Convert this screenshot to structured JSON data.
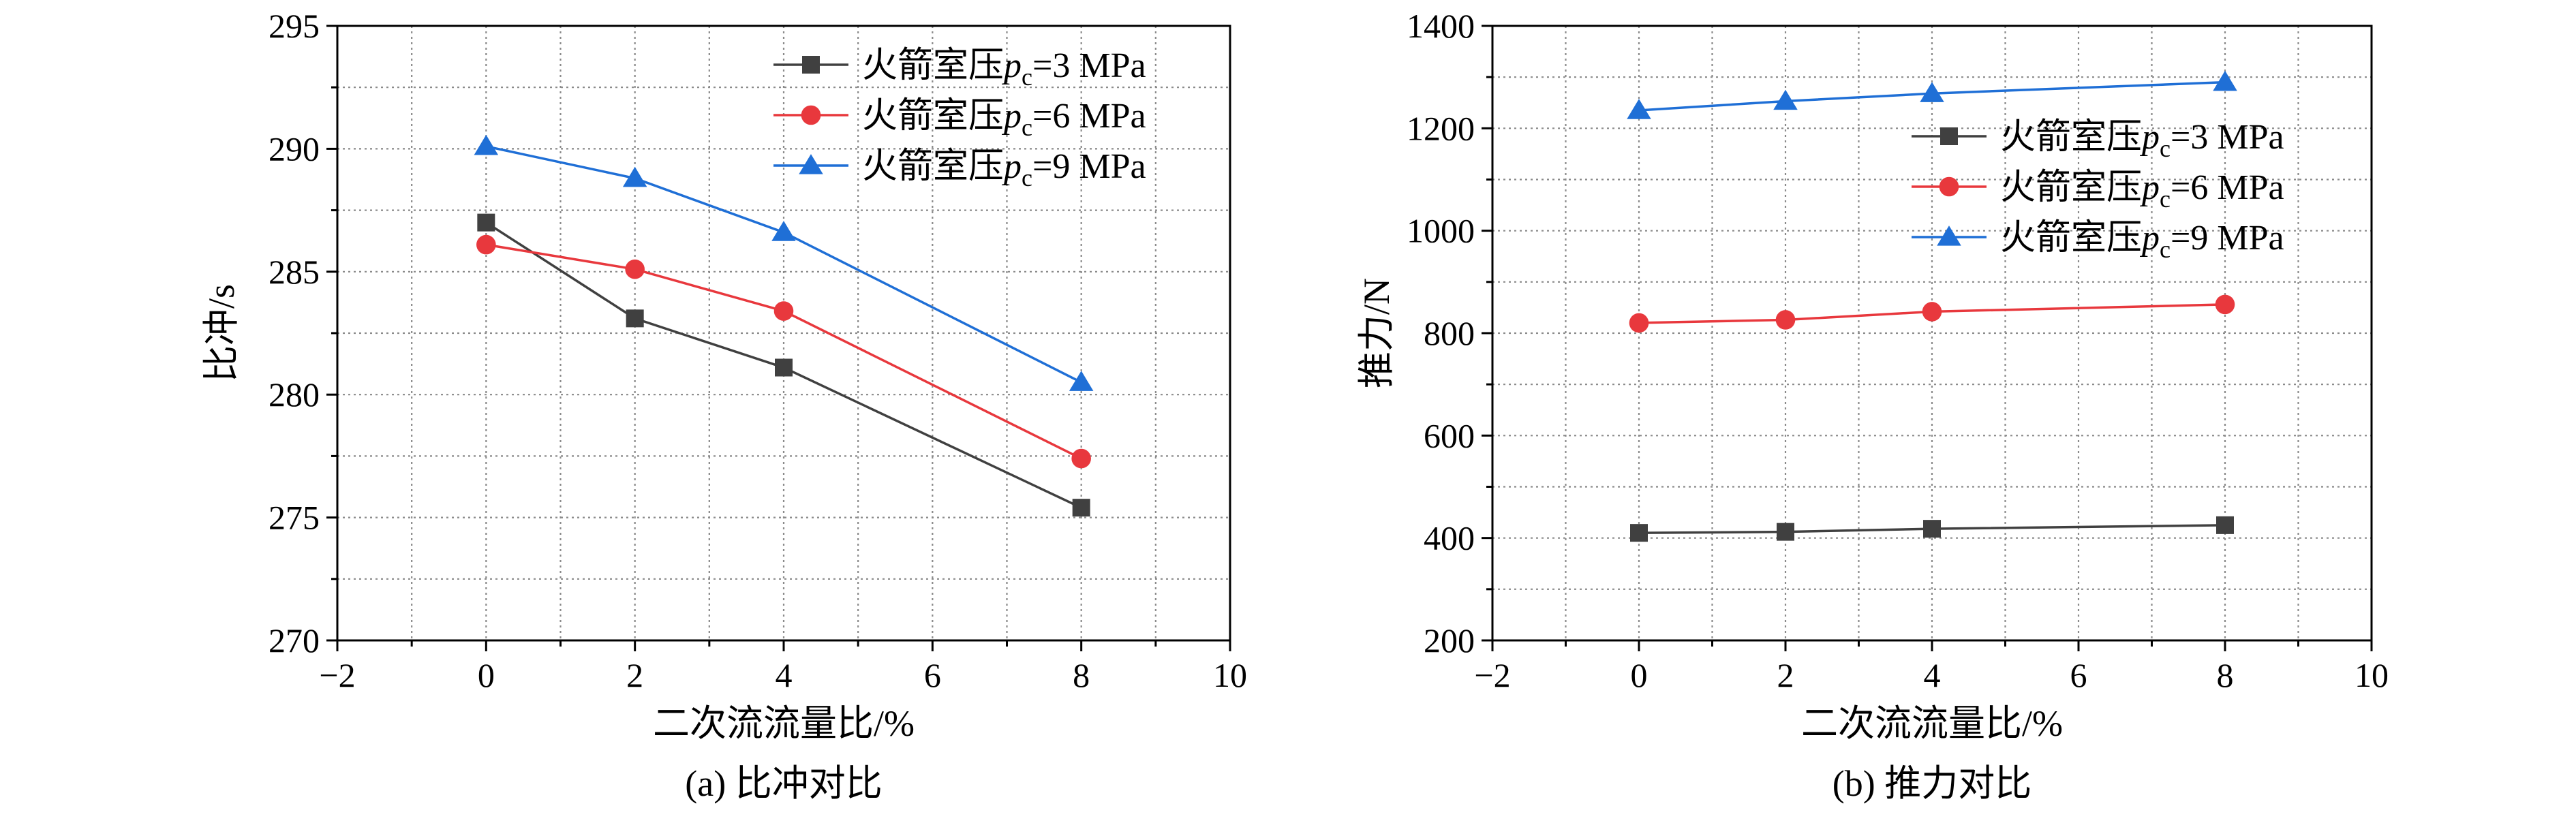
{
  "chart_data": [
    {
      "type": "line",
      "caption": "(a) 比冲对比",
      "xlabel": "二次流流量比/%",
      "ylabel": "比冲/s",
      "xlim": [
        -2,
        10
      ],
      "ylim": [
        270,
        295
      ],
      "x_ticks": [
        -2,
        0,
        2,
        4,
        6,
        8,
        10
      ],
      "x_tick_labels": [
        "−2",
        "0",
        "2",
        "4",
        "6",
        "8",
        "10"
      ],
      "y_ticks": [
        270,
        275,
        280,
        285,
        290,
        295
      ],
      "y_tick_labels": [
        "270",
        "275",
        "280",
        "285",
        "290",
        "295"
      ],
      "grid": true,
      "legend_position": "top-right",
      "x": [
        0,
        2,
        4,
        8
      ],
      "series": [
        {
          "label_prefix": "火箭室压",
          "var": "p",
          "sub": "c",
          "label_suffix": "=3 MPa",
          "color": "#404040",
          "marker": "square",
          "values": [
            287.0,
            283.1,
            281.1,
            275.4
          ]
        },
        {
          "label_prefix": "火箭室压",
          "var": "p",
          "sub": "c",
          "label_suffix": "=6 MPa",
          "color": "#e8383d",
          "marker": "circle",
          "values": [
            286.1,
            285.1,
            283.4,
            277.4
          ]
        },
        {
          "label_prefix": "火箭室压",
          "var": "p",
          "sub": "c",
          "label_suffix": "=9 MPa",
          "color": "#1f6fd6",
          "marker": "triangle",
          "values": [
            290.1,
            288.8,
            286.6,
            280.5
          ]
        }
      ]
    },
    {
      "type": "line",
      "caption": "(b) 推力对比",
      "xlabel": "二次流流量比/%",
      "ylabel": "推力/N",
      "xlim": [
        -2,
        10
      ],
      "ylim": [
        200,
        1400
      ],
      "x_ticks": [
        -2,
        0,
        2,
        4,
        6,
        8,
        10
      ],
      "x_tick_labels": [
        "−2",
        "0",
        "2",
        "4",
        "6",
        "8",
        "10"
      ],
      "y_ticks": [
        200,
        400,
        600,
        800,
        1000,
        1200,
        1400
      ],
      "y_tick_labels": [
        "200",
        "400",
        "600",
        "800",
        "1000",
        "1200",
        "1400"
      ],
      "grid": true,
      "legend_position": "top-right",
      "x": [
        0,
        2,
        4,
        8
      ],
      "series": [
        {
          "label_prefix": "火箭室压",
          "var": "p",
          "sub": "c",
          "label_suffix": "=3 MPa",
          "color": "#404040",
          "marker": "square",
          "values": [
            410,
            412,
            418,
            425
          ]
        },
        {
          "label_prefix": "火箭室压",
          "var": "p",
          "sub": "c",
          "label_suffix": "=6 MPa",
          "color": "#e8383d",
          "marker": "circle",
          "values": [
            820,
            826,
            842,
            856
          ]
        },
        {
          "label_prefix": "火箭室压",
          "var": "p",
          "sub": "c",
          "label_suffix": "=9 MPa",
          "color": "#1f6fd6",
          "marker": "triangle",
          "values": [
            1235,
            1253,
            1268,
            1290
          ]
        }
      ]
    }
  ]
}
